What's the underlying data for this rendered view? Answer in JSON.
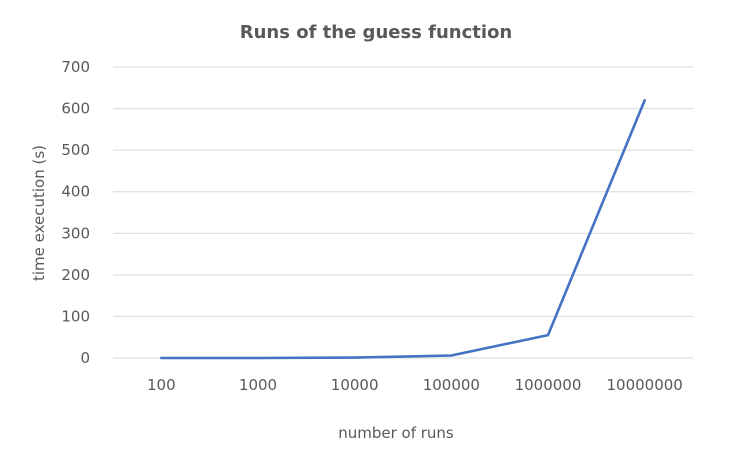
{
  "chart_data": {
    "type": "line",
    "title": "Runs of the guess function",
    "xlabel": "number of runs",
    "ylabel": "time execution (s)",
    "categories": [
      "100",
      "1000",
      "10000",
      "100000",
      "1000000",
      "10000000"
    ],
    "series": [
      {
        "values": [
          0.01,
          0.1,
          1,
          6,
          55,
          620
        ],
        "color": "#4472C4"
      }
    ],
    "ylim": [
      0,
      700
    ],
    "yticks": [
      0,
      100,
      200,
      300,
      400,
      500,
      600,
      700
    ],
    "grid": true,
    "legend": "none"
  }
}
